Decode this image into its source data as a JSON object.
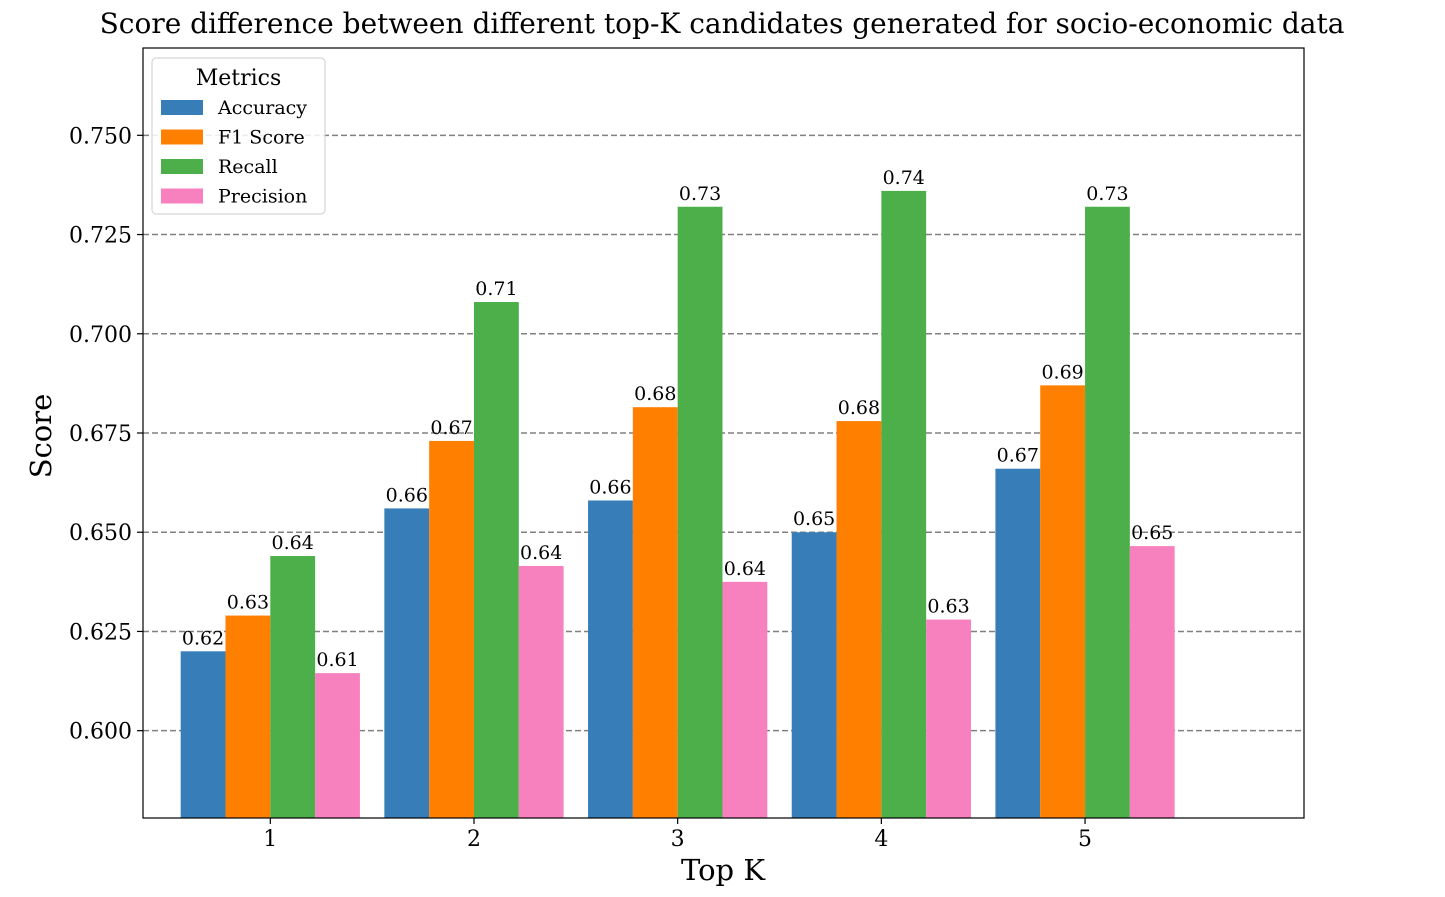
{
  "chart_data": {
    "type": "bar",
    "title": "Score difference between different top-K candidates generated for socio-economic data",
    "xlabel": "Top K",
    "ylabel": "Score",
    "categories": [
      "1",
      "2",
      "3",
      "4",
      "5"
    ],
    "ylim": [
      0.578,
      0.772
    ],
    "yticks": [
      "0.600",
      "0.625",
      "0.650",
      "0.675",
      "0.700",
      "0.725",
      "0.750"
    ],
    "ytick_values": [
      0.6,
      0.625,
      0.65,
      0.675,
      0.7,
      0.725,
      0.75
    ],
    "grid": "horizontal dashed",
    "legend": {
      "title": "Metrics",
      "placement": "top-left"
    },
    "series": [
      {
        "name": "Accuracy",
        "color": "#377eb8",
        "values": [
          0.62,
          0.656,
          0.658,
          0.65,
          0.666
        ],
        "labels": [
          "0.62",
          "0.66",
          "0.66",
          "0.65",
          "0.67"
        ]
      },
      {
        "name": "F1 Score",
        "color": "#ff7f00",
        "values": [
          0.629,
          0.673,
          0.6815,
          0.678,
          0.687
        ],
        "labels": [
          "0.63",
          "0.67",
          "0.68",
          "0.68",
          "0.69"
        ]
      },
      {
        "name": "Recall",
        "color": "#4daf4a",
        "values": [
          0.644,
          0.708,
          0.732,
          0.736,
          0.732
        ],
        "labels": [
          "0.64",
          "0.71",
          "0.73",
          "0.74",
          "0.73"
        ]
      },
      {
        "name": "Precision",
        "color": "#f781bf",
        "values": [
          0.6145,
          0.6415,
          0.6375,
          0.628,
          0.6465
        ],
        "labels": [
          "0.61",
          "0.64",
          "0.64",
          "0.63",
          "0.65"
        ]
      }
    ]
  }
}
